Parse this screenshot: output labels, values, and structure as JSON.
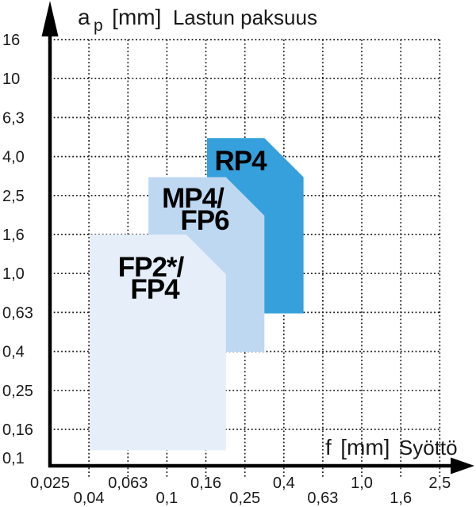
{
  "chart_data": {
    "type": "area",
    "title": "",
    "scale": "log-log",
    "grid": "dotted",
    "x_axis": {
      "variable": "f",
      "unit": "[mm]",
      "title": "Syöttö",
      "scale": "log",
      "ticks": [
        "0,025",
        "0,04",
        "0,063",
        "0,1",
        "0,16",
        "0,25",
        "0,4",
        "0,63",
        "1,0",
        "1,6",
        "2,5"
      ],
      "values": [
        0.025,
        0.04,
        0.063,
        0.1,
        0.16,
        0.25,
        0.4,
        0.63,
        1.0,
        1.6,
        2.5
      ],
      "range": [
        0.025,
        2.5
      ]
    },
    "y_axis": {
      "variable": "a",
      "subscript": "p",
      "unit": "[mm]",
      "title": "Lastun paksuus",
      "scale": "log",
      "ticks": [
        "16",
        "10",
        "6,3",
        "4,0",
        "2,5",
        "1,6",
        "1,0",
        "0,63",
        "0,4",
        "0,25",
        "0,16",
        "0,1"
      ],
      "values": [
        16,
        10,
        6.3,
        4.0,
        2.5,
        1.6,
        1.0,
        0.63,
        0.4,
        0.25,
        0.16,
        0.1
      ],
      "range": [
        0.1,
        16
      ]
    },
    "regions": [
      {
        "name": "RP4",
        "label_lines": [
          "RP4"
        ],
        "color": "#35a0db",
        "f_min": 0.16,
        "f_max": 0.5,
        "ap_min": 0.63,
        "ap_max": 5.0,
        "bevel_start_f": 0.315,
        "bevel_end_ap": 3.15,
        "z_order": "back"
      },
      {
        "name": "MP4/FP6",
        "label_lines": [
          "MP4/",
          "FP6"
        ],
        "color": "#bed8f2",
        "f_min": 0.08,
        "f_max": 0.315,
        "ap_min": 0.4,
        "ap_max": 3.15,
        "bevel_start_f": 0.2,
        "bevel_end_ap": 2.0,
        "z_order": "middle"
      },
      {
        "name": "FP2*/FP4",
        "label_lines": [
          "FP2*/",
          "FP4"
        ],
        "color": "#e5eef9",
        "f_min": 0.04,
        "f_max": 0.2,
        "ap_min": 0.125,
        "ap_max": 1.6,
        "bevel_start_f": 0.125,
        "bevel_end_ap": 1.0,
        "z_order": "front"
      }
    ],
    "colors": {
      "background": "#ffffff",
      "axis": "#000000",
      "grid": "#1a1a1a",
      "tick_text": "#1a1a1a",
      "region_label_text": "#000000"
    }
  }
}
